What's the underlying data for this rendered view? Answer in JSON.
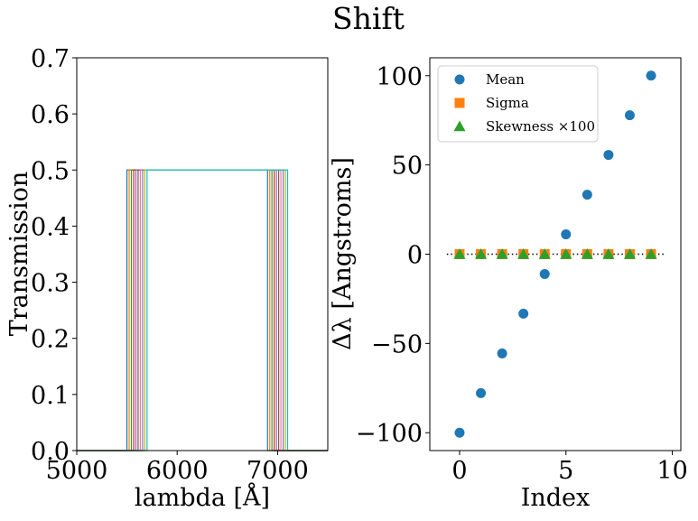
{
  "figure": {
    "suptitle": "Shift"
  },
  "colors": [
    "#1f77b4",
    "#ff7f0e",
    "#2ca02c",
    "#d62728",
    "#9467bd",
    "#8c564b",
    "#e377c2",
    "#7f7f7f",
    "#bcbd22",
    "#17becf"
  ],
  "chart_data": [
    {
      "type": "line",
      "xlabel": "lambda [Å]",
      "ylabel": "Transmission",
      "xlim": [
        5000,
        7500
      ],
      "ylim": [
        0,
        0.7
      ],
      "xticks": [
        5000,
        6000,
        7000
      ],
      "yticks": [
        0.0,
        0.1,
        0.2,
        0.3,
        0.4,
        0.5,
        0.6,
        0.7
      ],
      "xtick_labels": [
        "5000",
        "6000",
        "7000"
      ],
      "ytick_labels": [
        "0.0",
        "0.1",
        "0.2",
        "0.3",
        "0.4",
        "0.5",
        "0.6",
        "0.7"
      ],
      "series_description": "10 top-hat filters, transmission 0.5, each shifted in wavelength",
      "series": [
        {
          "edges": [
            5500,
            6900
          ],
          "level": 0.5
        },
        {
          "edges": [
            5522,
            6922
          ],
          "level": 0.5
        },
        {
          "edges": [
            5544,
            6944
          ],
          "level": 0.5
        },
        {
          "edges": [
            5567,
            6967
          ],
          "level": 0.5
        },
        {
          "edges": [
            5589,
            6989
          ],
          "level": 0.5
        },
        {
          "edges": [
            5611,
            7011
          ],
          "level": 0.5
        },
        {
          "edges": [
            5633,
            7033
          ],
          "level": 0.5
        },
        {
          "edges": [
            5656,
            7056
          ],
          "level": 0.5
        },
        {
          "edges": [
            5678,
            7078
          ],
          "level": 0.5
        },
        {
          "edges": [
            5700,
            7100
          ],
          "level": 0.5
        }
      ]
    },
    {
      "type": "scatter",
      "xlabel": "Index",
      "ylabel": "Δλ [Angstroms]",
      "xlim": [
        -1.4,
        10.4
      ],
      "ylim": [
        -110,
        110
      ],
      "xticks": [
        0,
        5,
        10
      ],
      "yticks": [
        -100,
        -50,
        0,
        50,
        100
      ],
      "xtick_labels": [
        "0",
        "5",
        "10"
      ],
      "ytick_labels": [
        "−100",
        "−50",
        "0",
        "50",
        "100"
      ],
      "legend_position": "top-left",
      "reference_line": {
        "y": 0,
        "style": "dotted",
        "color": "#000000"
      },
      "x": [
        0,
        1,
        2,
        3,
        4,
        5,
        6,
        7,
        8,
        9
      ],
      "series": [
        {
          "name": "Mean",
          "marker": "circle",
          "color": "#1f77b4",
          "values": [
            -100,
            -77.8,
            -55.6,
            -33.3,
            -11.1,
            11.1,
            33.3,
            55.6,
            77.8,
            100
          ]
        },
        {
          "name": "Sigma",
          "marker": "square",
          "color": "#ff7f0e",
          "values": [
            0,
            0,
            0,
            0,
            0,
            0,
            0,
            0,
            0,
            0
          ]
        },
        {
          "name": "Skewness ×100",
          "marker": "triangle",
          "color": "#2ca02c",
          "values": [
            0,
            0,
            0,
            0,
            0,
            0,
            0,
            0,
            0,
            0
          ]
        }
      ]
    }
  ]
}
